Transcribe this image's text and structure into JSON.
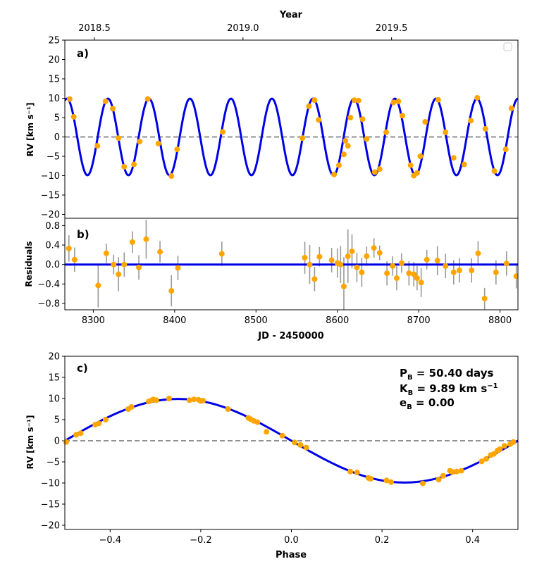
{
  "chart_data": [
    {
      "id": "a",
      "type": "line",
      "panel_label": "a)",
      "top_axis_label": "Year",
      "top_ticks": [
        {
          "value": 2018.5,
          "label": "2018.5"
        },
        {
          "value": 2019.0,
          "label": "2019.0"
        },
        {
          "value": 2019.5,
          "label": "2019.5"
        }
      ],
      "ylabel": "RV [km s⁻¹]",
      "xlim": [
        8265,
        8822
      ],
      "ylim": [
        -21,
        25
      ],
      "yticks": [
        25,
        20,
        15,
        10,
        5,
        0,
        -5,
        -10,
        -15,
        -20
      ],
      "ytick_labels": [
        "25",
        "20",
        "15",
        "10",
        "5",
        "0",
        "−5",
        "−10",
        "−15",
        "−20"
      ],
      "model": {
        "period": 50.4,
        "amplitude": 9.89,
        "t_max": 8267.6,
        "color": "#0000e6"
      },
      "zero_line_color": "#808080",
      "legend_box": "top-right (empty)",
      "points": [
        [
          8271,
          9.8
        ],
        [
          8276,
          5.2
        ],
        [
          8305,
          -2.3
        ],
        [
          8315,
          9.2
        ],
        [
          8324,
          7.3
        ],
        [
          8331,
          -0.3
        ],
        [
          8338,
          -7.7
        ],
        [
          8350,
          -7.1
        ],
        [
          8357,
          -1.2
        ],
        [
          8367,
          9.8
        ],
        [
          8380,
          -1.7
        ],
        [
          8396,
          -10.1
        ],
        [
          8403,
          -3.2
        ],
        [
          8459,
          1.3
        ],
        [
          8557,
          -0.3
        ],
        [
          8565,
          7.9
        ],
        [
          8572,
          9.5
        ],
        [
          8577,
          4.4
        ],
        [
          8596,
          -9.7
        ],
        [
          8602,
          -7.3
        ],
        [
          8608,
          -4.5
        ],
        [
          8610,
          -1.0
        ],
        [
          8613,
          -2.3
        ],
        [
          8616,
          5.0
        ],
        [
          8621,
          9.5
        ],
        [
          8626,
          9.4
        ],
        [
          8631,
          4.6
        ],
        [
          8636,
          -0.5
        ],
        [
          8646,
          -9.1
        ],
        [
          8652,
          -8.3
        ],
        [
          8660,
          1.2
        ],
        [
          8669,
          8.9
        ],
        [
          8675,
          9.2
        ],
        [
          8680,
          5.5
        ],
        [
          8690,
          -7.3
        ],
        [
          8694,
          -10.0
        ],
        [
          8698,
          -9.3
        ],
        [
          8702,
          -5.0
        ],
        [
          8708,
          3.9
        ],
        [
          8724,
          9.6
        ],
        [
          8733,
          1.2
        ],
        [
          8743,
          -5.4
        ],
        [
          8756,
          -7.1
        ],
        [
          8764,
          4.2
        ],
        [
          8772,
          10.1
        ],
        [
          8782,
          2.1
        ],
        [
          8793,
          -8.8
        ],
        [
          8807,
          -3.2
        ],
        [
          8814,
          7.4
        ]
      ]
    },
    {
      "id": "b",
      "type": "scatter",
      "panel_label": "b)",
      "ylabel": "Residuals",
      "xlabel": "JD - 2450000",
      "xlim": [
        8265,
        8822
      ],
      "ylim": [
        -0.93,
        0.95
      ],
      "xticks": [
        8300,
        8400,
        8500,
        8600,
        8700,
        8800
      ],
      "xtick_labels": [
        "8300",
        "8400",
        "8500",
        "8600",
        "8700",
        "8800"
      ],
      "yticks": [
        0.8,
        0.4,
        0.0,
        -0.4,
        -0.8
      ],
      "ytick_labels": [
        "0.8",
        "0.4",
        "0.0",
        "−0.4",
        "−0.8"
      ],
      "errorbar_color": "#999999",
      "points": [
        [
          8270,
          0.33,
          0.27
        ],
        [
          8277,
          0.1,
          0.25
        ],
        [
          8306,
          -0.43,
          0.45
        ],
        [
          8316,
          0.23,
          0.2
        ],
        [
          8325,
          0.0,
          0.2
        ],
        [
          8331,
          -0.2,
          0.35
        ],
        [
          8338,
          0.0,
          0.25
        ],
        [
          8348,
          0.46,
          0.22
        ],
        [
          8356,
          -0.06,
          0.25
        ],
        [
          8365,
          0.52,
          0.4
        ],
        [
          8382,
          0.26,
          0.22
        ],
        [
          8396,
          -0.54,
          0.32
        ],
        [
          8404,
          -0.07,
          0.25
        ],
        [
          8458,
          0.22,
          0.25
        ],
        [
          8560,
          0.14,
          0.33
        ],
        [
          8566,
          0.0,
          0.4
        ],
        [
          8572,
          -0.3,
          0.25
        ],
        [
          8578,
          0.16,
          0.2
        ],
        [
          8593,
          0.09,
          0.25
        ],
        [
          8600,
          0.03,
          0.3
        ],
        [
          8604,
          0.0,
          0.38
        ],
        [
          8608,
          -0.45,
          0.6
        ],
        [
          8613,
          0.17,
          0.55
        ],
        [
          8618,
          0.27,
          0.35
        ],
        [
          8624,
          -0.06,
          0.3
        ],
        [
          8630,
          -0.16,
          0.3
        ],
        [
          8636,
          0.17,
          0.2
        ],
        [
          8645,
          0.34,
          0.2
        ],
        [
          8652,
          0.24,
          0.15
        ],
        [
          8661,
          -0.18,
          0.25
        ],
        [
          8668,
          -0.03,
          0.2
        ],
        [
          8673,
          -0.28,
          0.25
        ],
        [
          8679,
          0.03,
          0.2
        ],
        [
          8688,
          -0.18,
          0.25
        ],
        [
          8694,
          -0.2,
          0.25
        ],
        [
          8698,
          -0.28,
          0.25
        ],
        [
          8703,
          -0.37,
          0.3
        ],
        [
          8710,
          0.1,
          0.2
        ],
        [
          8723,
          0.08,
          0.3
        ],
        [
          8733,
          -0.03,
          0.25
        ],
        [
          8743,
          -0.16,
          0.25
        ],
        [
          8750,
          -0.12,
          0.25
        ],
        [
          8765,
          -0.12,
          0.25
        ],
        [
          8773,
          0.23,
          0.25
        ],
        [
          8781,
          -0.7,
          0.22
        ],
        [
          8795,
          -0.16,
          0.25
        ],
        [
          8808,
          0.02,
          0.25
        ],
        [
          8820,
          -0.24,
          0.25
        ]
      ]
    },
    {
      "id": "c",
      "type": "line",
      "panel_label": "c)",
      "xlabel": "Phase",
      "ylabel": "RV [km s⁻¹]",
      "xlim": [
        -0.5,
        0.5
      ],
      "ylim": [
        -21,
        20
      ],
      "xticks": [
        -0.4,
        -0.2,
        0.0,
        0.2,
        0.4
      ],
      "xtick_labels": [
        "−0.4",
        "−0.2",
        "0.0",
        "0.2",
        "0.4"
      ],
      "yticks": [
        20,
        15,
        10,
        5,
        0,
        -5,
        -10,
        -15,
        -20
      ],
      "ytick_labels": [
        "20",
        "15",
        "10",
        "5",
        "0",
        "−5",
        "−10",
        "−15",
        "−20"
      ],
      "model": {
        "amplitude": 9.89,
        "phase_of_max": -0.25
      },
      "annotations": {
        "period": {
          "main": "P",
          "sub": "B",
          "rest": " = 50.40 days"
        },
        "semi_amplitude": {
          "main": "K",
          "sub": "B",
          "rest": " = 9.89 km s",
          "sup": "−1"
        },
        "eccentricity": {
          "main": "e",
          "sub": "B",
          "rest": " = 0.00"
        }
      },
      "points": [
        [
          -0.497,
          -0.3
        ],
        [
          -0.475,
          1.4
        ],
        [
          -0.465,
          1.8
        ],
        [
          -0.433,
          3.8
        ],
        [
          -0.425,
          4.1
        ],
        [
          -0.41,
          5.0
        ],
        [
          -0.36,
          7.5
        ],
        [
          -0.353,
          8.0
        ],
        [
          -0.315,
          9.3
        ],
        [
          -0.31,
          9.5
        ],
        [
          -0.305,
          9.8
        ],
        [
          -0.298,
          9.6
        ],
        [
          -0.27,
          10.0
        ],
        [
          -0.225,
          9.6
        ],
        [
          -0.215,
          9.8
        ],
        [
          -0.205,
          9.7
        ],
        [
          -0.2,
          9.4
        ],
        [
          -0.195,
          9.5
        ],
        [
          -0.14,
          7.5
        ],
        [
          -0.095,
          5.4
        ],
        [
          -0.09,
          5.1
        ],
        [
          -0.083,
          4.7
        ],
        [
          -0.075,
          4.4
        ],
        [
          -0.055,
          2.1
        ],
        [
          -0.02,
          1.2
        ],
        [
          0.007,
          -0.4
        ],
        [
          0.02,
          -1.0
        ],
        [
          0.033,
          -1.6
        ],
        [
          0.13,
          -7.3
        ],
        [
          0.145,
          -7.5
        ],
        [
          0.17,
          -8.8
        ],
        [
          0.175,
          -9.0
        ],
        [
          0.21,
          -9.4
        ],
        [
          0.22,
          -9.8
        ],
        [
          0.29,
          -10.1
        ],
        [
          0.325,
          -9.2
        ],
        [
          0.335,
          -8.3
        ],
        [
          0.35,
          -7.1
        ],
        [
          0.355,
          -7.4
        ],
        [
          0.365,
          -7.3
        ],
        [
          0.375,
          -7.1
        ],
        [
          0.42,
          -4.9
        ],
        [
          0.43,
          -4.3
        ],
        [
          0.44,
          -3.4
        ],
        [
          0.447,
          -3.1
        ],
        [
          0.455,
          -2.3
        ],
        [
          0.46,
          -2.0
        ],
        [
          0.47,
          -1.2
        ],
        [
          0.483,
          -0.8
        ],
        [
          0.49,
          -0.3
        ]
      ]
    }
  ]
}
